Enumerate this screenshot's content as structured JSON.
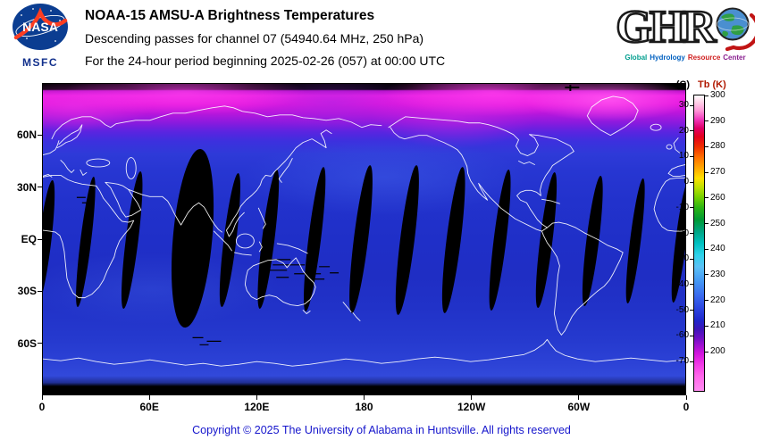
{
  "header": {
    "nasa": {
      "logo_text": "NASA",
      "msfc": "MSFC"
    },
    "title": "NOAA-15 AMSU-A Brightness Temperatures",
    "line2": "Descending passes for channel 07 (54940.64 MHz, 250 hPa)",
    "line3": "For the 24-hour period beginning 2025-02-26 (057) at 00:00 UTC",
    "ghrc": {
      "letters": "GHR",
      "tagline_words": [
        {
          "text": "Global",
          "color": "#009e8e"
        },
        {
          "text": "Hydrology",
          "color": "#0060c0"
        },
        {
          "text": "Resource",
          "color": "#d02020"
        },
        {
          "text": "Center",
          "color": "#8a2090"
        }
      ]
    }
  },
  "map": {
    "x_axis": [
      "0",
      "60E",
      "120E",
      "180",
      "120W",
      "60W",
      "0"
    ],
    "y_axis": [
      "60N",
      "30N",
      "EQ",
      "30S",
      "60S"
    ]
  },
  "colorbar": {
    "left_unit": "(C)",
    "right_unit": "Tb (K)",
    "celsius": [
      "30",
      "20",
      "10",
      "0",
      "-10",
      "-20",
      "-30",
      "-40",
      "-50",
      "-60",
      "-70"
    ],
    "kelvin": [
      "300",
      "290",
      "280",
      "270",
      "260",
      "250",
      "240",
      "230",
      "220",
      "210",
      "200"
    ]
  },
  "footer": "Copyright © 2025 The University of Alabama in Huntsville. All rights reserved",
  "chart_data": {
    "type": "heatmap",
    "title": "NOAA-15 AMSU-A Brightness Temperatures",
    "subtitle": "Descending passes for channel 07 (54940.64 MHz, 250 hPa)",
    "period": "24-hour period beginning 2025-02-26 (057) at 00:00 UTC",
    "projection": "equirectangular world map, longitude 0 eastward through 180 back to 0, latitude 90N to 90S, white coastline overlay",
    "x_ticks": [
      "0",
      "60E",
      "120E",
      "180",
      "120W",
      "60W",
      "0"
    ],
    "y_ticks": [
      "60N",
      "30N",
      "EQ",
      "30S",
      "60S"
    ],
    "colorbar": {
      "label_celsius": "(C)",
      "label_kelvin": "Tb (K)",
      "range_k": [
        200,
        300
      ],
      "ticks_k": [
        300,
        290,
        280,
        270,
        260,
        250,
        240,
        230,
        220,
        210,
        200
      ],
      "ticks_c": [
        30,
        20,
        10,
        0,
        -10,
        -20,
        -30,
        -40,
        -50,
        -60,
        -70
      ],
      "scale_colors_top_to_bottom": [
        "#ffffff",
        "#ff9ad8",
        "#f23cbe",
        "#e4001c",
        "#ff7000",
        "#ffe000",
        "#74d000",
        "#009a34",
        "#00a482",
        "#00c0c0",
        "#5cc2f6",
        "#3a68ee",
        "#1f28cc",
        "#6c10c4",
        "#d316dc",
        "#ff66ea"
      ]
    },
    "values_summary": "Brightness temperature at 250 hPa: ~205-225 K (blue shades) over most of the globe from 60N to Antarctica; 230-300 K (purple, magenta, bright pink) over high northern latitudes poleward of ~55N, brightest (~280-300 K) over the Arctic, Greenland and Siberia; ~14 black lens-shaped no-data gaps between descending orbital swaths, widest near the equator around 85E; solid black no-data bands along top and bottom (polar) edges"
  }
}
